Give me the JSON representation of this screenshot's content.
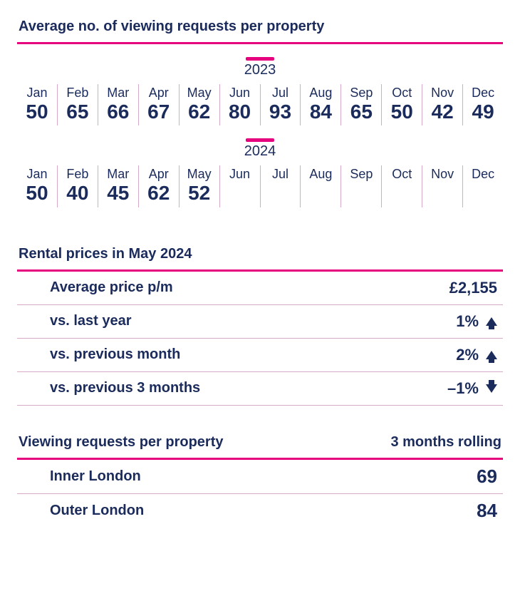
{
  "colors": {
    "text": "#1a2b5c",
    "accent": "#e6007e",
    "row_border": "#d9a9c9",
    "divider": "#d9a9c9",
    "background": "#ffffff"
  },
  "typography": {
    "title_fontsize_pt": 15,
    "month_label_fontsize_pt": 13,
    "month_value_fontsize_pt": 21,
    "metric_label_fontsize_pt": 15,
    "metric_value_fontsize_pt": 17,
    "region_value_fontsize_pt": 20,
    "font_family": "sans-serif"
  },
  "viewing_requests": {
    "title": "Average no. of viewing requests per property",
    "type": "table",
    "month_labels": [
      "Jan",
      "Feb",
      "Mar",
      "Apr",
      "May",
      "Jun",
      "Jul",
      "Aug",
      "Sep",
      "Oct",
      "Nov",
      "Dec"
    ],
    "years": [
      {
        "label": "2023",
        "values": [
          "50",
          "65",
          "66",
          "67",
          "62",
          "80",
          "93",
          "84",
          "65",
          "50",
          "42",
          "49"
        ]
      },
      {
        "label": "2024",
        "values": [
          "50",
          "40",
          "45",
          "62",
          "52",
          "",
          "",
          "",
          "",
          "",
          "",
          ""
        ]
      }
    ],
    "cell_divider_color": "#d9a9c9",
    "year_marker_color": "#e6007e"
  },
  "rental_prices": {
    "title": "Rental prices in May 2024",
    "type": "table",
    "rows": [
      {
        "label": "Average price p/m",
        "value": "£2,155",
        "direction": "none"
      },
      {
        "label": "vs. last year",
        "value": "1%",
        "direction": "up"
      },
      {
        "label": "vs. previous month",
        "value": "2%",
        "direction": "up"
      },
      {
        "label": "vs. previous 3 months",
        "value": "–1%",
        "direction": "down"
      }
    ],
    "arrow_color": "#1a2b5c"
  },
  "viewing_by_region": {
    "title": "Viewing requests per property",
    "subtitle": "3 months rolling",
    "type": "table",
    "rows": [
      {
        "label": "Inner London",
        "value": "69"
      },
      {
        "label": "Outer London",
        "value": "84"
      }
    ]
  }
}
